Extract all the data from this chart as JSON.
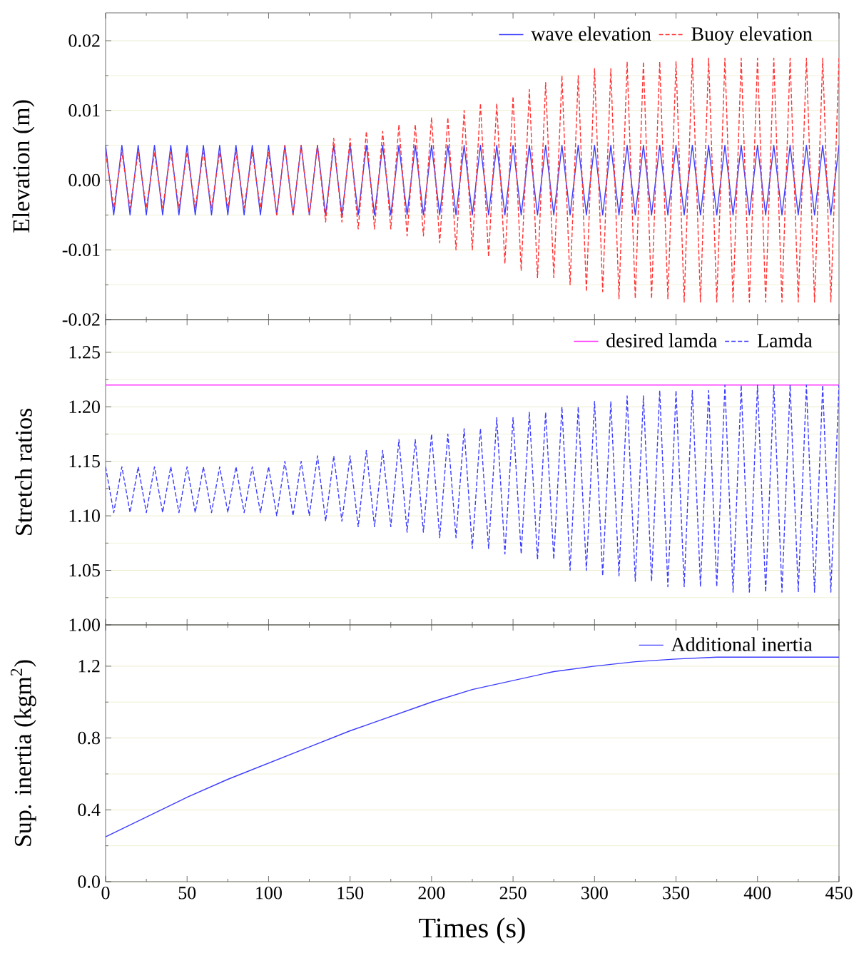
{
  "chart_data": [
    {
      "type": "line",
      "ylabel": "Elevation (m)",
      "xlim": [
        0,
        450
      ],
      "xticks": [
        0,
        50,
        100,
        150,
        200,
        250,
        300,
        350,
        400,
        450
      ],
      "ylim": [
        -0.02,
        0.024
      ],
      "yticks": [
        -0.02,
        -0.01,
        {
          "value": 0,
          "label": "0.00"
        },
        0.01,
        0.02
      ],
      "tick_labels": "y",
      "grid": "y",
      "legend": "top right",
      "marker": "none",
      "x": [
        0,
        5,
        10,
        15,
        20,
        25,
        30,
        35,
        40,
        45,
        50,
        55,
        60,
        65,
        70,
        75,
        80,
        85,
        90,
        95,
        100,
        105,
        110,
        115,
        120,
        125,
        130,
        135,
        140,
        145,
        150,
        155,
        160,
        165,
        170,
        175,
        180,
        185,
        190,
        195,
        200,
        205,
        210,
        215,
        220,
        225,
        230,
        235,
        240,
        245,
        250,
        255,
        260,
        265,
        270,
        275,
        280,
        285,
        290,
        295,
        300,
        305,
        310,
        315,
        320,
        325,
        330,
        335,
        340,
        345,
        350,
        355,
        360,
        365,
        370,
        375,
        380,
        385,
        390,
        395,
        400,
        405,
        410,
        415,
        420,
        425,
        430,
        435,
        440,
        445,
        450
      ],
      "series": [
        {
          "name": "wave elevation",
          "color": "#3c3cff",
          "line_style": "solid",
          "values": [
            0.005,
            -0.005,
            0.005,
            -0.005,
            0.005,
            -0.005,
            0.005,
            -0.005,
            0.005,
            -0.005,
            0.005,
            -0.005,
            0.005,
            -0.005,
            0.005,
            -0.005,
            0.005,
            -0.005,
            0.005,
            -0.005,
            0.005,
            -0.005,
            0.005,
            -0.005,
            0.005,
            -0.005,
            0.005,
            -0.005,
            0.005,
            -0.005,
            0.005,
            -0.005,
            0.005,
            -0.005,
            0.005,
            -0.005,
            0.005,
            -0.005,
            0.005,
            -0.005,
            0.005,
            -0.005,
            0.005,
            -0.005,
            0.005,
            -0.005,
            0.005,
            -0.005,
            0.005,
            -0.005,
            0.005,
            -0.005,
            0.005,
            -0.005,
            0.005,
            -0.005,
            0.005,
            -0.005,
            0.005,
            -0.005,
            0.005,
            -0.005,
            0.005,
            -0.005,
            0.005,
            -0.005,
            0.005,
            -0.005,
            0.005,
            -0.005,
            0.005,
            -0.005,
            0.005,
            -0.005,
            0.005,
            -0.005,
            0.005,
            -0.005,
            0.005,
            -0.005,
            0.005,
            -0.005,
            0.005,
            -0.005,
            0.005,
            -0.005,
            0.005,
            -0.005,
            0.005,
            -0.005,
            0.005
          ]
        },
        {
          "name": "Buoy elevation",
          "color": "#ff3333",
          "line_style": "dashed",
          "values": [
            0.004,
            -0.004,
            0.004,
            -0.004,
            0.004,
            -0.004,
            0.004,
            -0.004,
            0.004,
            -0.004,
            0.004,
            -0.004,
            0.004,
            -0.004,
            0.004,
            -0.004,
            0.004,
            -0.004,
            0.004,
            -0.004,
            0.004,
            -0.005,
            0.005,
            -0.005,
            0.005,
            -0.005,
            0.005,
            -0.006,
            0.006,
            -0.006,
            0.006,
            -0.007,
            0.007,
            -0.007,
            0.007,
            -0.007,
            0.008,
            -0.008,
            0.008,
            -0.008,
            0.009,
            -0.009,
            0.009,
            -0.01,
            0.01,
            -0.01,
            0.011,
            -0.011,
            0.011,
            -0.012,
            0.012,
            -0.013,
            0.013,
            -0.014,
            0.014,
            -0.014,
            0.015,
            -0.015,
            0.015,
            -0.016,
            0.016,
            -0.016,
            0.016,
            -0.017,
            0.017,
            -0.017,
            0.017,
            -0.017,
            0.017,
            -0.017,
            0.017,
            -0.0175,
            0.0175,
            -0.0175,
            0.0175,
            -0.0175,
            0.0175,
            -0.0175,
            0.0175,
            -0.0175,
            0.0175,
            -0.0175,
            0.0175,
            -0.0175,
            0.0175,
            -0.0175,
            0.0175,
            -0.0175,
            0.0175,
            -0.0175,
            0.0175
          ]
        }
      ]
    },
    {
      "type": "line",
      "ylabel": "Stretch ratios",
      "xlim": [
        0,
        450
      ],
      "xticks": [
        0,
        50,
        100,
        150,
        200,
        250,
        300,
        350,
        400,
        450
      ],
      "ylim": [
        1.0,
        1.28
      ],
      "yticks": [
        {
          "value": 1.0,
          "label": "1.00"
        },
        1.05,
        {
          "value": 1.1,
          "label": "1.10"
        },
        1.15,
        {
          "value": 1.2,
          "label": "1.20"
        },
        1.25
      ],
      "tick_labels": "y",
      "grid": "y",
      "legend": "top right",
      "marker": "none",
      "x": [
        0,
        5,
        10,
        15,
        20,
        25,
        30,
        35,
        40,
        45,
        50,
        55,
        60,
        65,
        70,
        75,
        80,
        85,
        90,
        95,
        100,
        105,
        110,
        115,
        120,
        125,
        130,
        135,
        140,
        145,
        150,
        155,
        160,
        165,
        170,
        175,
        180,
        185,
        190,
        195,
        200,
        205,
        210,
        215,
        220,
        225,
        230,
        235,
        240,
        245,
        250,
        255,
        260,
        265,
        270,
        275,
        280,
        285,
        290,
        295,
        300,
        305,
        310,
        315,
        320,
        325,
        330,
        335,
        340,
        345,
        350,
        355,
        360,
        365,
        370,
        375,
        380,
        385,
        390,
        395,
        400,
        405,
        410,
        415,
        420,
        425,
        430,
        435,
        440,
        445,
        450
      ],
      "series": [
        {
          "name": "desired lamda",
          "color": "#ff33ff",
          "line_style": "solid",
          "x": [
            0,
            450
          ],
          "values": [
            1.22,
            1.22
          ]
        },
        {
          "name": "Lamda",
          "color": "#3c3cff",
          "line_style": "dashed",
          "values": [
            1.145,
            1.103,
            1.145,
            1.103,
            1.145,
            1.103,
            1.145,
            1.103,
            1.145,
            1.103,
            1.145,
            1.103,
            1.145,
            1.103,
            1.145,
            1.103,
            1.145,
            1.103,
            1.145,
            1.103,
            1.145,
            1.1,
            1.15,
            1.1,
            1.15,
            1.1,
            1.155,
            1.095,
            1.155,
            1.095,
            1.155,
            1.09,
            1.16,
            1.09,
            1.16,
            1.09,
            1.17,
            1.085,
            1.17,
            1.085,
            1.175,
            1.08,
            1.175,
            1.08,
            1.18,
            1.07,
            1.18,
            1.07,
            1.19,
            1.065,
            1.19,
            1.065,
            1.195,
            1.06,
            1.195,
            1.06,
            1.2,
            1.05,
            1.2,
            1.05,
            1.205,
            1.045,
            1.205,
            1.045,
            1.21,
            1.04,
            1.21,
            1.04,
            1.215,
            1.035,
            1.215,
            1.035,
            1.215,
            1.035,
            1.215,
            1.035,
            1.22,
            1.03,
            1.22,
            1.03,
            1.22,
            1.03,
            1.22,
            1.03,
            1.22,
            1.03,
            1.22,
            1.03,
            1.22,
            1.03,
            1.22
          ]
        }
      ]
    },
    {
      "type": "line",
      "ylabel": "Sup. inertia (kgm$^{2}$)",
      "xlabel": "Times (s)",
      "xlim": [
        0,
        450
      ],
      "xticks": [
        0,
        50,
        100,
        150,
        200,
        250,
        300,
        350,
        400,
        450
      ],
      "ylim": [
        0,
        1.43
      ],
      "yticks": [
        {
          "value": 0,
          "label": "0.0"
        },
        0.4,
        0.8,
        1.2
      ],
      "grid": "y",
      "legend": "top right",
      "marker": "none",
      "series": [
        {
          "name": "Additional inertia",
          "color": "#3c3cff",
          "line_style": "solid",
          "x": [
            0,
            25,
            50,
            75,
            100,
            125,
            150,
            175,
            200,
            225,
            250,
            275,
            300,
            325,
            350,
            375,
            400,
            450
          ],
          "values": [
            0.25,
            0.36,
            0.47,
            0.57,
            0.66,
            0.75,
            0.84,
            0.92,
            1.0,
            1.07,
            1.12,
            1.17,
            1.2,
            1.225,
            1.24,
            1.25,
            1.25,
            1.25
          ]
        }
      ]
    }
  ]
}
